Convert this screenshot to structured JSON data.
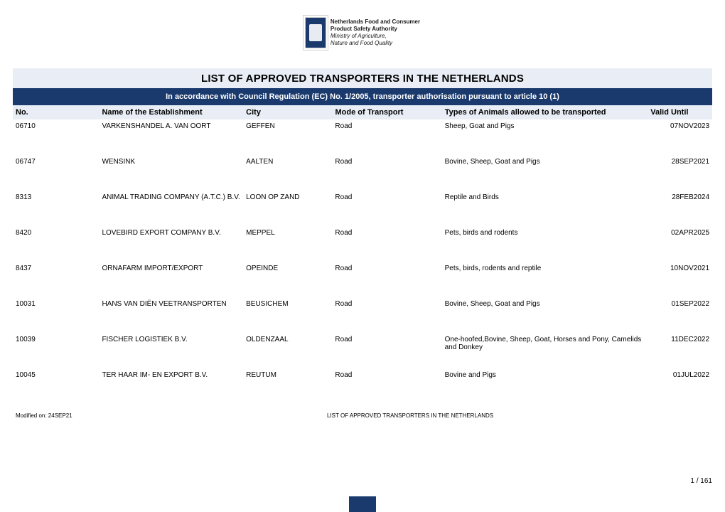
{
  "logo": {
    "line1": "Netherlands Food and Consumer",
    "line2": "Product Safety Authority",
    "line3": "Ministry of Agriculture,",
    "line4": "Nature and Food Quality"
  },
  "title": "LIST OF APPROVED TRANSPORTERS IN THE NETHERLANDS",
  "subtitle": "In accordance with Council Regulation (EC) No. 1/2005, transporter authorisation pursuant to article 10 (1)",
  "columns": {
    "no": "No.",
    "name": "Name of the Establishment",
    "city": "City",
    "mode": "Mode of Transport",
    "types": "Types of Animals allowed to be transported",
    "valid": "Valid Until"
  },
  "rows": [
    {
      "no": "06710",
      "name": "VARKENSHANDEL A. VAN OORT",
      "city": "GEFFEN",
      "mode": "Road",
      "types": "Sheep, Goat and Pigs",
      "valid": "07NOV2023"
    },
    {
      "no": "06747",
      "name": "WENSINK",
      "city": "AALTEN",
      "mode": "Road",
      "types": "Bovine, Sheep, Goat and Pigs",
      "valid": "28SEP2021"
    },
    {
      "no": "8313",
      "name": "ANIMAL TRADING COMPANY (A.T.C.) B.V.",
      "city": "LOON OP ZAND",
      "mode": "Road",
      "types": "Reptile and Birds",
      "valid": "28FEB2024"
    },
    {
      "no": "8420",
      "name": "LOVEBIRD EXPORT COMPANY B.V.",
      "city": "MEPPEL",
      "mode": "Road",
      "types": "Pets, birds and rodents",
      "valid": "02APR2025"
    },
    {
      "no": "8437",
      "name": "ORNAFARM IMPORT/EXPORT",
      "city": "OPEINDE",
      "mode": "Road",
      "types": "Pets, birds, rodents and reptile",
      "valid": "10NOV2021"
    },
    {
      "no": "10031",
      "name": "HANS VAN DIËN VEETRANSPORTEN",
      "city": "BEUSICHEM",
      "mode": "Road",
      "types": "Bovine, Sheep, Goat and Pigs",
      "valid": "01SEP2022"
    },
    {
      "no": "10039",
      "name": "FISCHER LOGISTIEK B.V.",
      "city": "OLDENZAAL",
      "mode": "Road",
      "types": "One-hoofed,Bovine, Sheep, Goat, Horses and Pony, Camelids and Donkey",
      "valid": "11DEC2022"
    },
    {
      "no": "10045",
      "name": "TER HAAR IM- EN EXPORT B.V.",
      "city": "REUTUM",
      "mode": "Road",
      "types": "Bovine and Pigs",
      "valid": "01JUL2022"
    }
  ],
  "footer": {
    "modified": "Modified on: 24SEP21",
    "center": "LIST OF APPROVED TRANSPORTERS IN THE NETHERLANDS",
    "page": "1 / 161"
  },
  "colors": {
    "header_bg": "#e9eef6",
    "brand_blue": "#1a3a6e",
    "text": "#000000",
    "background": "#ffffff"
  }
}
